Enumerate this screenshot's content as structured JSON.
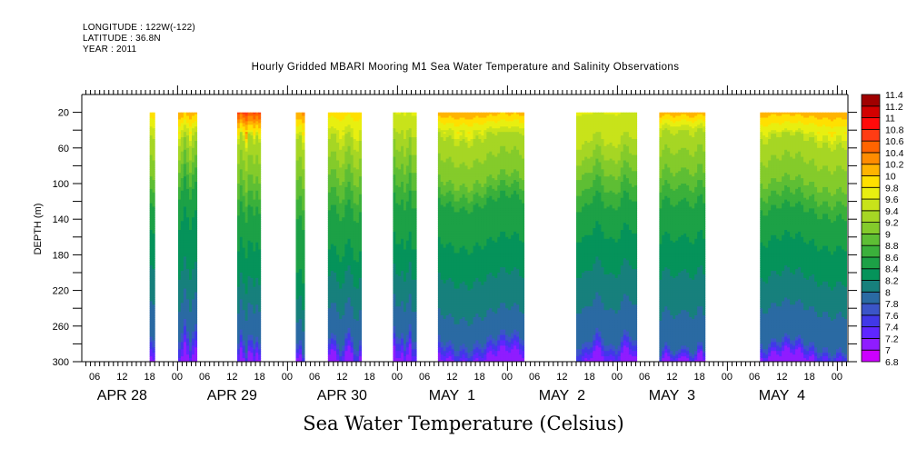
{
  "header": {
    "longitude": "LONGITUDE : 122W(-122)",
    "latitude": "LATITUDE : 36.8N",
    "year": "YEAR : 2011"
  },
  "chart_data": {
    "type": "heatmap",
    "subtype": "filled-contour depth-time section",
    "title": "Hourly Gridded MBARI Mooring M1 Sea Water Temperature and Salinity Observations",
    "xlabel": "Sea Water Temperature (Celsius)",
    "ylabel": "DEPTH (m)",
    "ylim": [
      300,
      0
    ],
    "y_ticks": [
      20,
      60,
      100,
      140,
      180,
      220,
      260,
      300
    ],
    "x_unit": "hours since 2011-04-28 00:00",
    "xlim": [
      3.2,
      170.4
    ],
    "x_tick_labels": [
      {
        "h": 6,
        "label": "06"
      },
      {
        "h": 12,
        "label": "12"
      },
      {
        "h": 18,
        "label": "18"
      },
      {
        "h": 24,
        "label": "00"
      },
      {
        "h": 30,
        "label": "06"
      },
      {
        "h": 36,
        "label": "12"
      },
      {
        "h": 42,
        "label": "18"
      },
      {
        "h": 48,
        "label": "00"
      },
      {
        "h": 54,
        "label": "06"
      },
      {
        "h": 60,
        "label": "12"
      },
      {
        "h": 66,
        "label": "18"
      },
      {
        "h": 72,
        "label": "00"
      },
      {
        "h": 78,
        "label": "06"
      },
      {
        "h": 84,
        "label": "12"
      },
      {
        "h": 90,
        "label": "18"
      },
      {
        "h": 96,
        "label": "00"
      },
      {
        "h": 102,
        "label": "06"
      },
      {
        "h": 108,
        "label": "12"
      },
      {
        "h": 114,
        "label": "18"
      },
      {
        "h": 120,
        "label": "00"
      },
      {
        "h": 126,
        "label": "06"
      },
      {
        "h": 132,
        "label": "12"
      },
      {
        "h": 138,
        "label": "18"
      },
      {
        "h": 144,
        "label": "00"
      },
      {
        "h": 150,
        "label": "06"
      },
      {
        "h": 156,
        "label": "12"
      },
      {
        "h": 162,
        "label": "18"
      },
      {
        "h": 168,
        "label": "00"
      }
    ],
    "day_labels": [
      {
        "h": 12,
        "label": "APR 28"
      },
      {
        "h": 36,
        "label": "APR 29"
      },
      {
        "h": 60,
        "label": "APR 30"
      },
      {
        "h": 84,
        "label": "MAY  1"
      },
      {
        "h": 108,
        "label": "MAY  2"
      },
      {
        "h": 132,
        "label": "MAY  3"
      },
      {
        "h": 156,
        "label": "MAY  4"
      }
    ],
    "colorbar": {
      "levels": [
        6.8,
        7,
        7.2,
        7.4,
        7.6,
        7.8,
        8,
        8.2,
        8.4,
        8.6,
        8.8,
        9,
        9.2,
        9.4,
        9.6,
        9.8,
        10,
        10.2,
        10.4,
        10.6,
        10.8,
        11,
        11.2,
        11.4
      ],
      "colors": [
        "#cc00ff",
        "#8f1cff",
        "#5f26ff",
        "#4138e8",
        "#3b55c8",
        "#2a6aa3",
        "#17807c",
        "#05935a",
        "#1ca146",
        "#3bb03b",
        "#5ebe34",
        "#84cb2b",
        "#a6d624",
        "#c8e31a",
        "#e8ef10",
        "#ffe000",
        "#ffb400",
        "#ff8c00",
        "#ff6400",
        "#ff3c14",
        "#ff0a0a",
        "#d20000",
        "#a00000"
      ]
    },
    "segments": [
      {
        "start": 18.0,
        "end": 19.2,
        "surface_temp": 9.9,
        "isotherm_depths": {
          "9.4": 45,
          "9": 90,
          "8.6": 120,
          "8.4": 150,
          "8.2": 190,
          "8": 230,
          "7.8": 270
        }
      },
      {
        "start": 24.2,
        "end": 28.4,
        "surface_temp": 10.1,
        "isotherm_depths": {
          "9.4": 45,
          "9": 75,
          "8.6": 105,
          "8.4": 138,
          "8.2": 195,
          "8": 230,
          "7.8": 265
        }
      },
      {
        "start": 37.1,
        "end": 42.3,
        "surface_temp": 10.6,
        "isotherm_depths": {
          "9.4": 50,
          "9": 95,
          "8.6": 130,
          "8.4": 170,
          "8.2": 210,
          "8": 240,
          "7.8": 275
        }
      },
      {
        "start": 49.9,
        "end": 51.9,
        "surface_temp": 10.2,
        "isotherm_depths": {
          "9.4": 50,
          "9": 95,
          "8.6": 140,
          "8.4": 200,
          "8.2": 230,
          "8": 255,
          "7.8": 280
        }
      },
      {
        "start": 56.9,
        "end": 64.3,
        "surface_temp": 9.9,
        "isotherm_depths": {
          "9.4": 50,
          "9": 90,
          "8.6": 130,
          "8.4": 175,
          "8.2": 205,
          "8": 240,
          "7.8": 275
        }
      },
      {
        "start": 71.1,
        "end": 76.3,
        "surface_temp": 9.6,
        "isotherm_depths": {
          "9.4": 40,
          "9": 80,
          "8.6": 120,
          "8.4": 165,
          "8.2": 200,
          "8": 235,
          "7.8": 270
        }
      },
      {
        "start": 80.9,
        "end": 99.8,
        "surface_temp": 10.1,
        "isotherm_depths": {
          "9.4": 45,
          "9": 95,
          "8.6": 120,
          "8.4": 165,
          "8.2": 205,
          "8": 245,
          "7.8": 275
        }
      },
      {
        "start": 111.1,
        "end": 124.4,
        "surface_temp": 9.6,
        "isotherm_depths": {
          "9.4": 50,
          "9": 85,
          "8.6": 120,
          "8.4": 155,
          "8.2": 195,
          "8": 235,
          "7.8": 275
        }
      },
      {
        "start": 129.2,
        "end": 139.3,
        "surface_temp": 10.1,
        "isotherm_depths": {
          "9.4": 40,
          "9": 85,
          "8.6": 120,
          "8.4": 160,
          "8.2": 200,
          "8": 245,
          "7.8": 285
        }
      },
      {
        "start": 151.2,
        "end": 170.2,
        "surface_temp": 10.1,
        "isotherm_depths": {
          "9.4": 50,
          "9": 100,
          "8.6": 130,
          "8.4": 165,
          "8.2": 205,
          "8": 240,
          "7.8": 280
        }
      }
    ],
    "legend": "colorbar-right",
    "grid": false
  }
}
